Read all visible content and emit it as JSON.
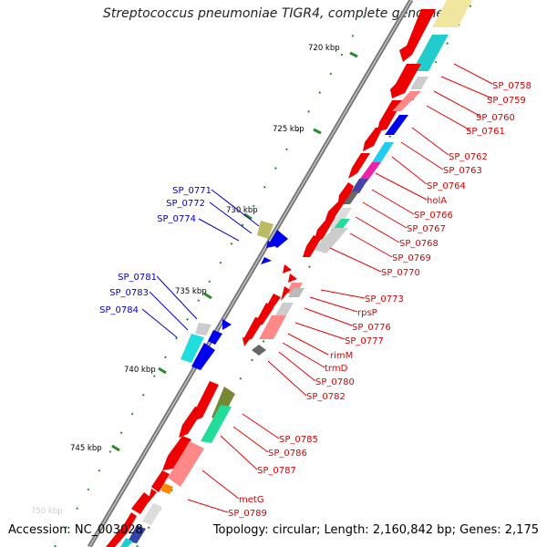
{
  "title": "Streptococcus pneumoniae TIGR4, complete genome",
  "footer": {
    "accession_label": "Accession:",
    "accession": "NC_003028",
    "topology_label": "Topology:",
    "topology": "circular",
    "length_label": "Length:",
    "length": "2,160,842 bp",
    "genes_label": "Genes:",
    "genes": "2,175"
  },
  "colors": {
    "backbone": "#888888",
    "forward_tick": "#1a8a1a",
    "forward_label": "#dd0000",
    "reverse_label": "#0000cc"
  },
  "ticks": [
    "720 kbp",
    "725 kbp",
    "730 kbp",
    "735 kbp",
    "740 kbp",
    "745 kbp",
    "750 kbp"
  ],
  "forward_labels": [
    "SP_0758",
    "SP_0759",
    "SP_0760",
    "SP_0761",
    "SP_0762",
    "SP_0763",
    "SP_0764",
    "holA",
    "SP_0766",
    "SP_0767",
    "SP_0768",
    "SP_0769",
    "SP_0770",
    "SP_0773",
    "rpsP",
    "SP_0776",
    "SP_0777",
    "rimM",
    "trmD",
    "SP_0780",
    "SP_0782",
    "SP_0785",
    "SP_0786",
    "SP_0787",
    "metG",
    "SP_0789"
  ],
  "reverse_labels": [
    "SP_0771",
    "SP_0772",
    "SP_0774",
    "SP_0781",
    "SP_0783",
    "SP_0784"
  ]
}
